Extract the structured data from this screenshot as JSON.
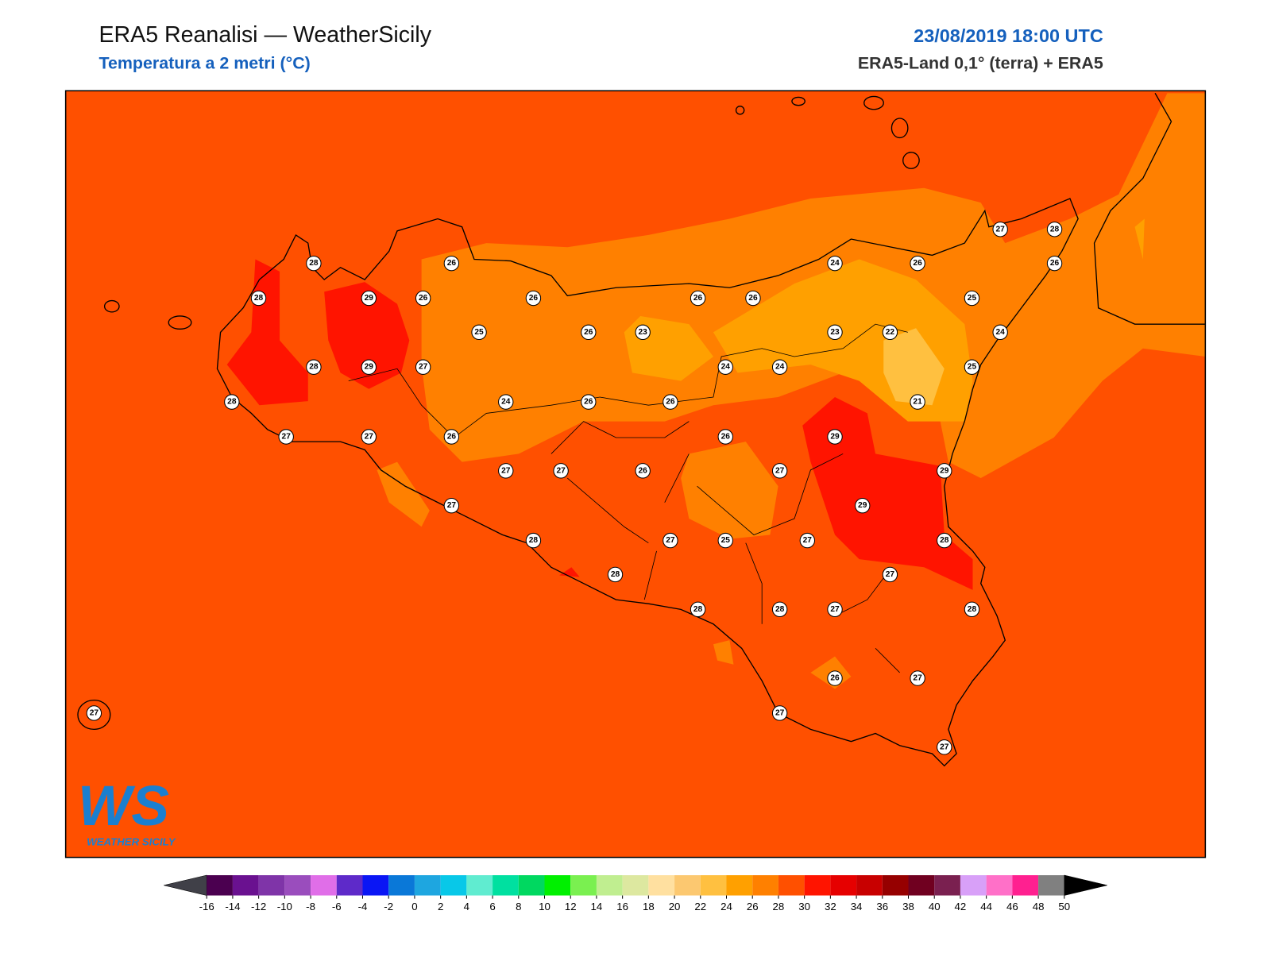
{
  "header": {
    "title": "ERA5 Reanalisi — WeatherSicily",
    "subtitle": "Temperatura a 2 metri (°C)",
    "datetime": "23/08/2019 18:00 UTC",
    "source": "ERA5-Land 0,1° (terra) + ERA5"
  },
  "map": {
    "stations": [
      28,
      26,
      28,
      29,
      26,
      26,
      25,
      26,
      23,
      28,
      29,
      27,
      28,
      24,
      26,
      26,
      27,
      27,
      26,
      27,
      27,
      26,
      27,
      28,
      28,
      26,
      26,
      24,
      24,
      24,
      26,
      27,
      28,
      26,
      25,
      23,
      22,
      24,
      25,
      21,
      26,
      29,
      27,
      29,
      29,
      27,
      25,
      27,
      28,
      27,
      28,
      28,
      27,
      28,
      26,
      27,
      27,
      27,
      27
    ]
  },
  "colorbar": {
    "ticks": [
      -16,
      -14,
      -12,
      -10,
      -8,
      -6,
      -4,
      -2,
      0,
      2,
      4,
      6,
      8,
      10,
      12,
      14,
      16,
      18,
      20,
      22,
      24,
      26,
      28,
      30,
      32,
      34,
      36,
      38,
      40,
      42,
      44,
      46,
      48,
      50
    ],
    "colors": [
      "#4b0050",
      "#6a1190",
      "#7f34a8",
      "#9a4dbd",
      "#e06ee8",
      "#5e2ac9",
      "#0a16f5",
      "#0a78d8",
      "#1ea6e0",
      "#08c8e8",
      "#60ecd0",
      "#00e0a0",
      "#00d860",
      "#00f000",
      "#7af050",
      "#c0ee90",
      "#dde8a0",
      "#ffe0a0",
      "#fcc870",
      "#ffc040",
      "#ffa000",
      "#ff8000",
      "#ff5000",
      "#ff1400",
      "#e60000",
      "#c80000",
      "#960000",
      "#700020",
      "#7a2050",
      "#d8a0f8",
      "#ff70c8",
      "#ff2090",
      "#808080"
    ],
    "under_color": "#404048",
    "over_color": "#000000"
  },
  "logo": {
    "mark": "WS",
    "text": "WEATHER SICILY"
  }
}
